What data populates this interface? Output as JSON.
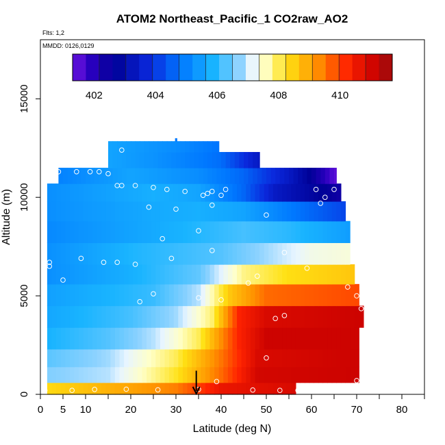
{
  "chart_data": {
    "type": "heatmap",
    "title": "ATOM2 Northeast_Pacific_1 CO2raw_AO2",
    "flights_note": "Flts: 1,2",
    "dates_note": "MMDD: 0126,0129",
    "xlabel": "Latitude (deg N)",
    "ylabel": "Altitude (m)",
    "xlim": [
      0,
      85
    ],
    "ylim": [
      0,
      18000
    ],
    "xticks": [
      0,
      5,
      10,
      20,
      30,
      40,
      50,
      60,
      70,
      80
    ],
    "xtick_labels": [
      "0",
      "5",
      "10",
      "20",
      "30",
      "40",
      "50",
      "60",
      "70",
      "80"
    ],
    "yticks": [
      0,
      5000,
      10000,
      15000
    ],
    "ytick_labels": [
      "0",
      "5000",
      "10000",
      "15000"
    ],
    "colorbar": {
      "min": 401.3,
      "max": 411.7,
      "tick_values": [
        402,
        404,
        406,
        408,
        410
      ],
      "tick_labels": [
        "402",
        "404",
        "406",
        "408",
        "410"
      ]
    },
    "marker": {
      "latitude": 34.5,
      "label": "arrow"
    },
    "field_by_altitude_band": [
      {
        "alt": [
          0,
          600
        ],
        "lat": [
          1.5,
          56.5
        ],
        "anchors": [
          [
            0,
            408.3
          ],
          [
            30,
            409.4
          ],
          [
            40,
            410.6
          ],
          [
            56,
            410.9
          ]
        ]
      },
      {
        "alt": [
          600,
          1400
        ],
        "lat": [
          1.5,
          70.5
        ],
        "anchors": [
          [
            0,
            406.6
          ],
          [
            15,
            406.9
          ],
          [
            30,
            408.2
          ],
          [
            40,
            409.6
          ],
          [
            48,
            411.0
          ],
          [
            70,
            411.1
          ]
        ]
      },
      {
        "alt": [
          1400,
          2300
        ],
        "lat": [
          1.5,
          70.5
        ],
        "anchors": [
          [
            0,
            406.3
          ],
          [
            15,
            406.8
          ],
          [
            30,
            408.0
          ],
          [
            40,
            409.5
          ],
          [
            48,
            410.9
          ],
          [
            70,
            411.1
          ]
        ]
      },
      {
        "alt": [
          2300,
          3400
        ],
        "lat": [
          1.5,
          70.5
        ],
        "anchors": [
          [
            0,
            405.8
          ],
          [
            15,
            406.3
          ],
          [
            25,
            406.9
          ],
          [
            35,
            408.0
          ],
          [
            44,
            410.3
          ],
          [
            50,
            411.1
          ],
          [
            70,
            411.1
          ]
        ]
      },
      {
        "alt": [
          3400,
          4500
        ],
        "lat": [
          1.5,
          71.5
        ],
        "anchors": [
          [
            0,
            405.6
          ],
          [
            20,
            406.2
          ],
          [
            30,
            406.8
          ],
          [
            38,
            407.9
          ],
          [
            44,
            410.3
          ],
          [
            50,
            410.9
          ],
          [
            71,
            411.1
          ]
        ]
      },
      {
        "alt": [
          4500,
          5600
        ],
        "lat": [
          1.5,
          70.5
        ],
        "anchors": [
          [
            0,
            405.5
          ],
          [
            25,
            406.1
          ],
          [
            35,
            406.9
          ],
          [
            42,
            408.6
          ],
          [
            50,
            409.6
          ],
          [
            70,
            409.9
          ]
        ]
      },
      {
        "alt": [
          5600,
          6600
        ],
        "lat": [
          1.5,
          69.5
        ],
        "anchors": [
          [
            0,
            405.2
          ],
          [
            20,
            405.8
          ],
          [
            35,
            406.4
          ],
          [
            45,
            407.8
          ],
          [
            55,
            408.3
          ],
          [
            69,
            408.6
          ]
        ]
      },
      {
        "alt": [
          6600,
          7700
        ],
        "lat": [
          1.5,
          68.5
        ],
        "anchors": [
          [
            0,
            405.2
          ],
          [
            20,
            405.9
          ],
          [
            40,
            406.3
          ],
          [
            50,
            406.8
          ],
          [
            60,
            407.3
          ],
          [
            68,
            407.4
          ]
        ]
      },
      {
        "alt": [
          7700,
          8800
        ],
        "lat": [
          1.5,
          68.5
        ],
        "anchors": [
          [
            0,
            405.1
          ],
          [
            25,
            405.7
          ],
          [
            45,
            406.2
          ],
          [
            55,
            406.0
          ],
          [
            68,
            405.5
          ]
        ]
      },
      {
        "alt": [
          8800,
          9800
        ],
        "lat": [
          1.5,
          67.5
        ],
        "anchors": [
          [
            0,
            405.2
          ],
          [
            25,
            405.7
          ],
          [
            35,
            405.8
          ],
          [
            45,
            405.6
          ],
          [
            55,
            404.9
          ],
          [
            67,
            404.2
          ]
        ]
      },
      {
        "alt": [
          9800,
          10700
        ],
        "lat": [
          1.5,
          66.5
        ],
        "anchors": [
          [
            0,
            405.2
          ],
          [
            25,
            405.8
          ],
          [
            35,
            405.6
          ],
          [
            45,
            404.6
          ],
          [
            52,
            403.4
          ],
          [
            66,
            402.4
          ]
        ]
      },
      {
        "alt": [
          10700,
          11500
        ],
        "lat": [
          4,
          65.5
        ],
        "anchors": [
          [
            4,
            405.0
          ],
          [
            20,
            405.6
          ],
          [
            35,
            405.2
          ],
          [
            45,
            404.6
          ],
          [
            55,
            403.4
          ],
          [
            60,
            402.6
          ],
          [
            65,
            401.5
          ]
        ]
      },
      {
        "alt": [
          11500,
          12300
        ],
        "lat": [
          15,
          48.5
        ],
        "anchors": [
          [
            15,
            405.6
          ],
          [
            25,
            405.3
          ],
          [
            40,
            404.7
          ],
          [
            48,
            403.4
          ]
        ]
      },
      {
        "alt": [
          12300,
          12850
        ],
        "lat": [
          15,
          39.5
        ],
        "anchors": [
          [
            15,
            405.6
          ],
          [
            30,
            405.2
          ],
          [
            39,
            404.8
          ]
        ]
      },
      {
        "alt": [
          12850,
          13000
        ],
        "lat": [
          29.8,
          30.2
        ],
        "anchors": [
          [
            29.8,
            404.9
          ],
          [
            30.2,
            404.9
          ]
        ]
      }
    ],
    "sample_points": [
      [
        1,
        200
      ],
      [
        7,
        200
      ],
      [
        12,
        250
      ],
      [
        19,
        260
      ],
      [
        26,
        230
      ],
      [
        35,
        250
      ],
      [
        47,
        220
      ],
      [
        53,
        200
      ],
      [
        57,
        200
      ],
      [
        39,
        650
      ],
      [
        70,
        700
      ],
      [
        50,
        1850
      ],
      [
        54,
        4000
      ],
      [
        52,
        3850
      ],
      [
        71,
        4350
      ],
      [
        70,
        5000
      ],
      [
        68,
        5450
      ],
      [
        46,
        5650
      ],
      [
        48,
        6000
      ],
      [
        22,
        4700
      ],
      [
        25,
        5100
      ],
      [
        35,
        4900
      ],
      [
        40,
        4800
      ],
      [
        5,
        5800
      ],
      [
        2,
        6500
      ],
      [
        2,
        6700
      ],
      [
        9,
        6900
      ],
      [
        14,
        6700
      ],
      [
        17,
        6700
      ],
      [
        21,
        6600
      ],
      [
        29,
        6900
      ],
      [
        38,
        7300
      ],
      [
        54,
        7200
      ],
      [
        59,
        6400
      ],
      [
        27,
        7900
      ],
      [
        35,
        8300
      ],
      [
        24,
        9500
      ],
      [
        30,
        9400
      ],
      [
        38,
        9600
      ],
      [
        50,
        9100
      ],
      [
        18,
        10600
      ],
      [
        21,
        10600
      ],
      [
        25,
        10500
      ],
      [
        28,
        10400
      ],
      [
        32,
        10300
      ],
      [
        36,
        10100
      ],
      [
        37,
        10200
      ],
      [
        38,
        10300
      ],
      [
        40,
        10100
      ],
      [
        41,
        10400
      ],
      [
        61,
        10400
      ],
      [
        62,
        9700
      ],
      [
        63,
        10000
      ],
      [
        65,
        10400
      ],
      [
        3,
        11300
      ],
      [
        4,
        11300
      ],
      [
        8,
        11300
      ],
      [
        11,
        11300
      ],
      [
        13,
        11300
      ],
      [
        15,
        11200
      ],
      [
        17,
        10600
      ],
      [
        11,
        12100
      ],
      [
        18,
        12400
      ]
    ]
  }
}
